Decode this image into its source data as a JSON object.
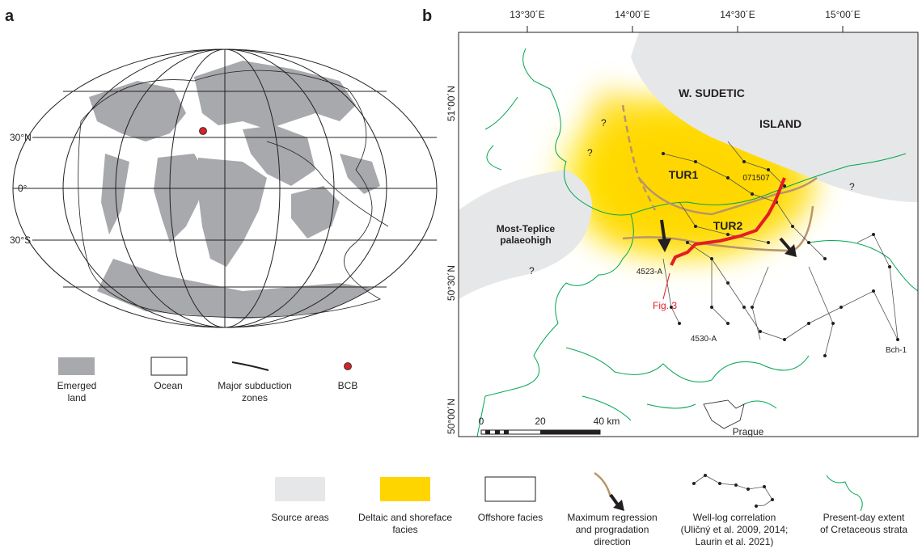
{
  "panel_a": {
    "label": "a",
    "latitudes": [
      "30°N",
      "0°",
      "30°S"
    ],
    "legend": [
      [
        "Emerged",
        "land"
      ],
      [
        "Ocean"
      ],
      [
        "Major subduction",
        "zones"
      ],
      [
        "BCB"
      ]
    ]
  },
  "panel_b": {
    "label": "b",
    "longitudes": [
      "13°30´E",
      "14°00´E",
      "14°30´E",
      "15°00´E"
    ],
    "latitudes": [
      "51°00´N",
      "50°30´N",
      "50°00´N"
    ],
    "labels": {
      "w_sudetic": "W. SUDETIC",
      "island": "ISLAND",
      "tur1": "TUR1",
      "tur2": "TUR2",
      "most_teplice": [
        "Most-Teplice",
        "palaeohigh"
      ],
      "well_071507": "071507",
      "well_4523": "4523-A",
      "fig3": "Fig. 3",
      "well_4530": "4530-A",
      "well_bch1": "Bch-1",
      "prague": "Prague",
      "question_marks": [
        "?",
        "?",
        "?",
        "?"
      ]
    },
    "scale": [
      "0",
      "20",
      "40 km"
    ],
    "legend": [
      [
        "Source areas"
      ],
      [
        "Deltaic and shoreface",
        "facies"
      ],
      [
        "Offshore facies"
      ],
      [
        "Maximum regression",
        "and progradation",
        "direction"
      ],
      [
        "Well-log correlation",
        "(Uličný et al. 2009, 2014;",
        "Laurin et al. 2021)"
      ],
      [
        "Present-day extent",
        "of Cretaceous strata"
      ]
    ]
  }
}
